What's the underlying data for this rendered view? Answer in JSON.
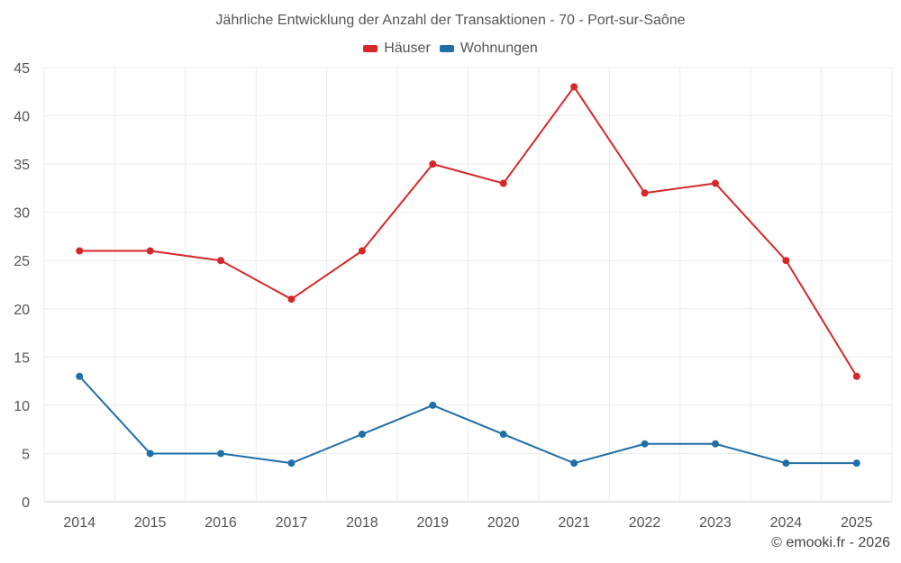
{
  "chart_data": {
    "type": "line",
    "title": "Jährliche Entwicklung der Anzahl der Transaktionen - 70 - Port-sur-Saône",
    "categories": [
      "2014",
      "2015",
      "2016",
      "2017",
      "2018",
      "2019",
      "2020",
      "2021",
      "2022",
      "2023",
      "2024",
      "2025"
    ],
    "series": [
      {
        "name": "Häuser",
        "color": "#d62728",
        "values": [
          26,
          26,
          25,
          21,
          26,
          35,
          33,
          43,
          32,
          33,
          25,
          13
        ]
      },
      {
        "name": "Wohnungen",
        "color": "#1f6fa8",
        "values": [
          13,
          5,
          5,
          4,
          7,
          10,
          7,
          4,
          6,
          6,
          4,
          4
        ]
      }
    ],
    "ylim": [
      0,
      45
    ],
    "yticks": [
      0,
      5,
      10,
      15,
      20,
      25,
      30,
      35,
      40,
      45
    ],
    "xlabel": "",
    "ylabel": "",
    "grid": true,
    "legend_position": "top-center"
  },
  "footer": {
    "copyright": "© emooki.fr - 2026"
  }
}
